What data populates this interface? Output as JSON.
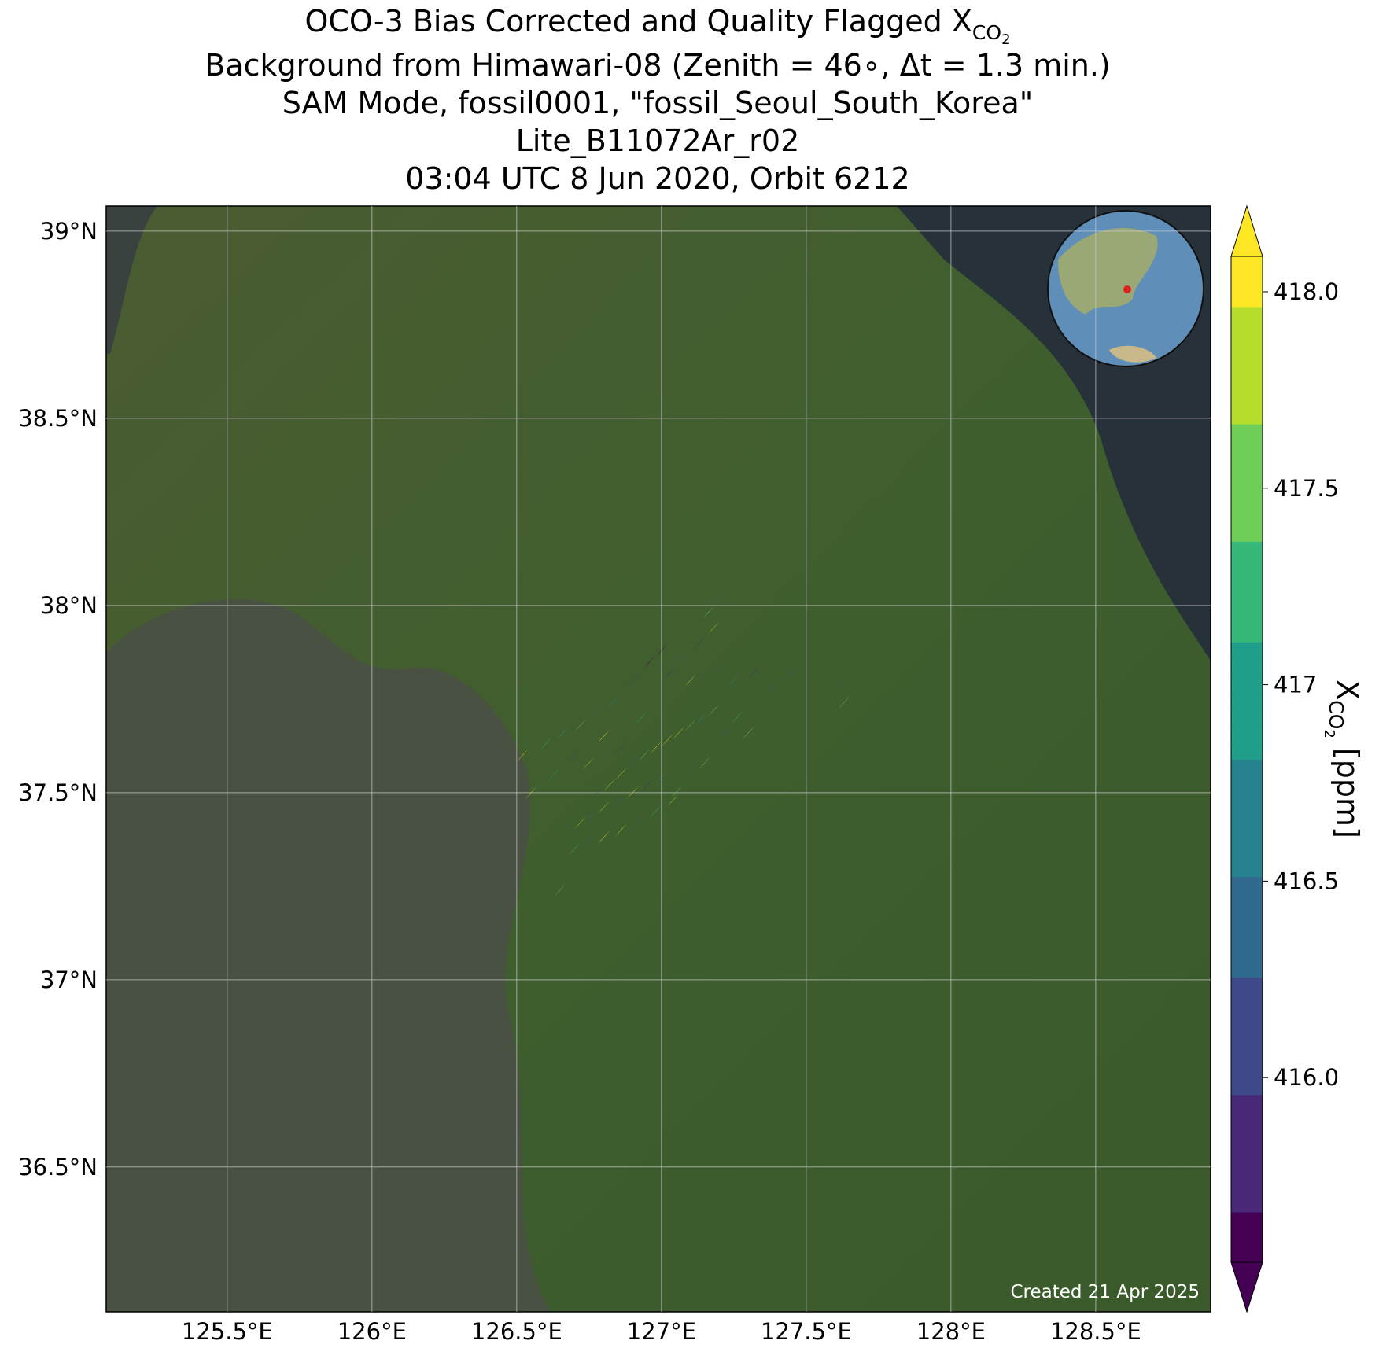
{
  "chart_data": {
    "type": "scatter",
    "title": {
      "line1": "OCO-3 Bias Corrected and Quality Flagged X",
      "line1_sub": "CO",
      "line1_subsub": "2",
      "line2": "Background from Himawari-08 (Zenith = 46∘, Δt =  1.3 min.)",
      "line3": "SAM Mode, fossil0001, \"fossil_Seoul_South_Korea\"",
      "line4": "Lite_B11072Ar_r02",
      "line5": "03:04 UTC 8 Jun 2020, Orbit 6212"
    },
    "colorbar_label": {
      "main": "X",
      "sub": "CO",
      "subsub": "2",
      "unit": " [ppm]"
    },
    "annotation": "Created 21 Apr 2025",
    "colormap": "viridis",
    "clim": [
      415.53,
      418.09
    ],
    "cticks": [
      {
        "value": 416.0,
        "label": "416.0"
      },
      416.5,
      417.0,
      417.5,
      {
        "value": 418.0,
        "label": "418.0"
      }
    ],
    "xlim": [
      125.082,
      128.897
    ],
    "ylim": [
      36.113,
      39.067
    ],
    "xticks": [
      {
        "value": 125.5,
        "label": "125.5°E"
      },
      {
        "value": 126,
        "label": "126°E"
      },
      {
        "value": 126.5,
        "label": "126.5°E"
      },
      {
        "value": 127,
        "label": "127°E"
      },
      {
        "value": 127.5,
        "label": "127.5°E"
      },
      {
        "value": 128,
        "label": "128°E"
      },
      {
        "value": 128.5,
        "label": "128.5°E"
      }
    ],
    "yticks": [
      {
        "value": 36.5,
        "label": "36.5°N"
      },
      {
        "value": 37,
        "label": "37°N"
      },
      {
        "value": 37.5,
        "label": "37.5°N"
      },
      {
        "value": 38,
        "label": "38°N"
      },
      {
        "value": 38.5,
        "label": "38.5°N"
      },
      {
        "value": 39,
        "label": "39°N"
      }
    ],
    "grid": true,
    "series": [
      {
        "name": "XCO2",
        "x": [
          126.52,
          126.55,
          126.6,
          126.63,
          126.66,
          126.7,
          126.72,
          126.75,
          126.78,
          126.8,
          126.83,
          126.86,
          126.9,
          126.93,
          126.96,
          127.0,
          127.03,
          127.06,
          127.1,
          127.13,
          127.16,
          127.2,
          126.78,
          126.82,
          126.86,
          126.9,
          126.94,
          126.98,
          127.02,
          127.06,
          127.1,
          127.14,
          127.18,
          127.22,
          127.26,
          127.3,
          126.72,
          126.76,
          126.8,
          126.85,
          126.9,
          126.95,
          127.0,
          127.05,
          127.1,
          127.15,
          126.7,
          126.74,
          126.8,
          126.86,
          126.92,
          126.98,
          127.04,
          127.2,
          127.18,
          127.25,
          127.32,
          127.38,
          127.45,
          127.62,
          127.63,
          126.65
        ],
        "y": [
          37.6,
          37.5,
          37.63,
          37.55,
          37.66,
          37.6,
          37.68,
          37.58,
          37.72,
          37.65,
          37.74,
          37.62,
          37.8,
          37.7,
          37.85,
          37.88,
          37.82,
          37.86,
          37.8,
          37.9,
          37.98,
          38.02,
          37.5,
          37.52,
          37.55,
          37.58,
          37.6,
          37.62,
          37.64,
          37.66,
          37.68,
          37.7,
          37.72,
          37.66,
          37.7,
          37.66,
          37.42,
          37.44,
          37.46,
          37.48,
          37.5,
          37.52,
          37.54,
          37.5,
          37.56,
          37.58,
          37.35,
          37.37,
          37.38,
          37.4,
          37.42,
          37.45,
          37.48,
          37.83,
          37.94,
          37.8,
          37.82,
          37.78,
          37.82,
          37.79,
          37.74,
          37.24
        ],
        "values": [
          418.1,
          418.0,
          417.3,
          416.9,
          417.0,
          416.2,
          417.6,
          417.9,
          416.5,
          418.0,
          416.8,
          415.7,
          416.0,
          417.2,
          415.6,
          415.6,
          415.9,
          416.3,
          417.8,
          415.9,
          417.5,
          416.4,
          416.2,
          417.9,
          418.1,
          416.0,
          417.6,
          418.1,
          418.0,
          417.8,
          417.4,
          416.7,
          417.5,
          416.1,
          417.2,
          417.6,
          417.7,
          416.4,
          417.9,
          416.0,
          418.1,
          415.8,
          416.6,
          417.5,
          416.2,
          417.4,
          417.1,
          416.3,
          418.0,
          417.8,
          416.4,
          417.2,
          417.9,
          416.1,
          417.7,
          416.8,
          415.7,
          416.2,
          416.0,
          416.3,
          417.6,
          417.5
        ]
      }
    ]
  }
}
